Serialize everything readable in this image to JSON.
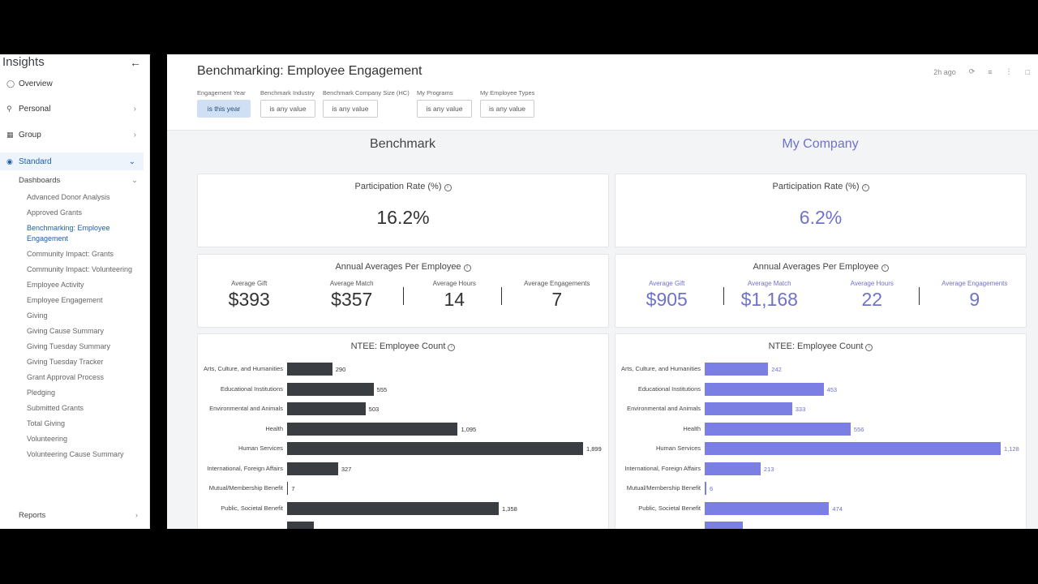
{
  "sidebar": {
    "title": "Insights",
    "back_icon": "arrow-left-icon",
    "nav": [
      {
        "label": "Overview",
        "icon": "bulb-icon"
      },
      {
        "label": "Personal",
        "icon": "person-icon"
      },
      {
        "label": "Group",
        "icon": "building-icon"
      },
      {
        "label": "Standard",
        "icon": "globe-icon"
      }
    ],
    "dashboards_label": "Dashboards",
    "dashboards": [
      "Advanced Donor Analysis",
      "Approved Grants",
      "Benchmarking: Employee Engagement",
      "Community Impact: Grants",
      "Community Impact: Volunteering",
      "Employee Activity",
      "Employee Engagement",
      "Giving",
      "Giving Cause Summary",
      "Giving Tuesday Summary",
      "Giving Tuesday Tracker",
      "Grant Approval Process",
      "Pledging",
      "Submitted Grants",
      "Total Giving",
      "Volunteering",
      "Volunteering Cause Summary"
    ],
    "active_dashboard_index": 2,
    "reports_label": "Reports"
  },
  "header": {
    "title": "Benchmarking: Employee Engagement",
    "time_ago": "2h ago",
    "filters": [
      {
        "label": "Engagement Year",
        "value": "is this year",
        "selected": true
      },
      {
        "label": "Benchmark Industry",
        "value": "is any value",
        "selected": false
      },
      {
        "label": "Benchmark Company Size (HC)",
        "value": "is any value",
        "selected": false
      },
      {
        "label": "My Programs",
        "value": "is any value",
        "selected": false
      },
      {
        "label": "My Employee Types",
        "value": "is any value",
        "selected": false
      }
    ]
  },
  "columns": {
    "benchmark": "Benchmark",
    "my_company": "My Company"
  },
  "participation": {
    "title": "Participation Rate (%)",
    "benchmark": "16.2%",
    "my_company": "6.2%"
  },
  "averages": {
    "title": "Annual Averages Per Employee",
    "labels": [
      "Average Gift",
      "Average Match",
      "Average Hours",
      "Average Engagements"
    ],
    "benchmark": [
      "$393",
      "$357",
      "14",
      "7"
    ],
    "my_company": [
      "$905",
      "$1,168",
      "22",
      "9"
    ]
  },
  "ntee": {
    "title": "NTEE: Employee Count",
    "categories": [
      "Arts, Culture, and Humanities",
      "Educational Institutions",
      "Environmental and Animals",
      "Health",
      "Human Services",
      "International, Foreign Affairs",
      "Mutual/Membership Benefit",
      "Public, Societal Benefit",
      ""
    ]
  },
  "chart_data": [
    {
      "type": "bar",
      "title": "NTEE: Employee Count",
      "series": [
        {
          "name": "Benchmark",
          "values": [
            290,
            555,
            503,
            1095,
            1899,
            327,
            7,
            1358,
            170
          ]
        }
      ],
      "value_labels": [
        "290",
        "555",
        "503",
        "1,095",
        "1,899",
        "327",
        "7",
        "1,358",
        ""
      ],
      "categories": [
        "Arts, Culture, and Humanities",
        "Educational Institutions",
        "Environmental and Animals",
        "Health",
        "Human Services",
        "International, Foreign Affairs",
        "Mutual/Membership Benefit",
        "Public, Societal Benefit",
        ""
      ],
      "xlim": [
        0,
        1899
      ],
      "color": "#3a3d42"
    },
    {
      "type": "bar",
      "title": "NTEE: Employee Count",
      "series": [
        {
          "name": "My Company",
          "values": [
            242,
            453,
            333,
            556,
            1128,
            213,
            6,
            474,
            145
          ]
        }
      ],
      "value_labels": [
        "242",
        "453",
        "333",
        "556",
        "1,128",
        "213",
        "6",
        "474",
        ""
      ],
      "categories": [
        "Arts, Culture, and Humanities",
        "Educational Institutions",
        "Environmental and Animals",
        "Health",
        "Human Services",
        "International, Foreign Affairs",
        "Mutual/Membership Benefit",
        "Public, Societal Benefit",
        ""
      ],
      "xlim": [
        0,
        1128
      ],
      "color": "#7b7fe3"
    }
  ]
}
